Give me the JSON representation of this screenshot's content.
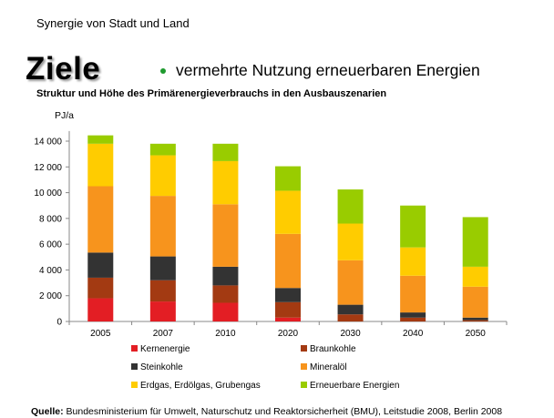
{
  "header": {
    "title": "Synergie von Stadt und Land"
  },
  "slide": {
    "heading": "Ziele",
    "bullet": "vermehrte Nutzung erneuerbaren Energien",
    "source_label": "Quelle:",
    "source_text": "Bundesministerium für Umwelt, Naturschutz und Reaktorsicherheit (BMU), Leitstudie 2008, Berlin 2008"
  },
  "colors": {
    "bullet": "#1e9a2e"
  },
  "chart_data": {
    "type": "bar",
    "stacked": true,
    "title": "Struktur und Höhe des Primärenergieverbrauchs in den Ausbauszenarien",
    "ylabel": "PJ/a",
    "xlabel": "",
    "ylim": [
      0,
      14500
    ],
    "yticks": [
      0,
      2000,
      4000,
      6000,
      8000,
      10000,
      12000,
      14000
    ],
    "ytick_labels": [
      "0",
      "2 000",
      "4 000",
      "6 000",
      "8 000",
      "10 000",
      "12 000",
      "14 000"
    ],
    "grid": false,
    "legend_position": "bottom",
    "categories": [
      "2005",
      "2007",
      "2010",
      "2020",
      "2030",
      "2040",
      "2050"
    ],
    "series": [
      {
        "name": "Kernenergie",
        "color": "#e31e24",
        "values": [
          1800,
          1550,
          1450,
          300,
          0,
          0,
          0
        ]
      },
      {
        "name": "Braunkohle",
        "color": "#a33a12",
        "values": [
          1600,
          1650,
          1350,
          1200,
          550,
          300,
          100
        ]
      },
      {
        "name": "Steinkohle",
        "color": "#333333",
        "values": [
          1950,
          1850,
          1450,
          1100,
          750,
          400,
          200
        ]
      },
      {
        "name": "Mineralöl",
        "color": "#f7941d",
        "values": [
          5150,
          4700,
          4850,
          4200,
          3450,
          2850,
          2400
        ]
      },
      {
        "name": "Erdgas, Erdölgas, Grubengas",
        "color": "#ffcc00",
        "values": [
          3300,
          3150,
          3350,
          3350,
          2850,
          2200,
          1550
        ]
      },
      {
        "name": "Erneuerbare Energien",
        "color": "#99cc00",
        "values": [
          650,
          900,
          1350,
          1900,
          2650,
          3250,
          3850
        ]
      }
    ]
  }
}
